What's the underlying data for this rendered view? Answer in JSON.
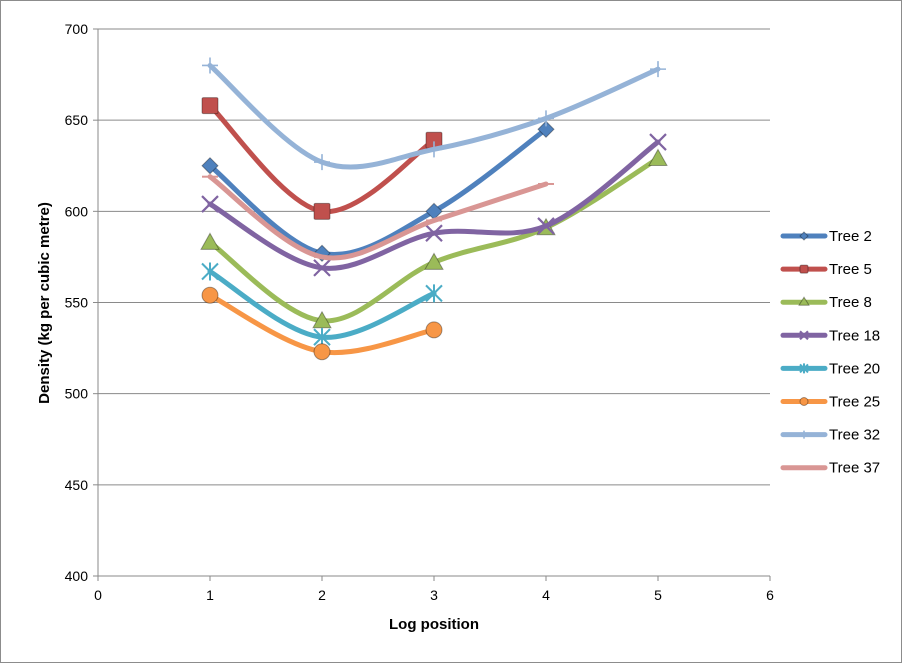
{
  "chart_data": {
    "type": "line",
    "smooth": true,
    "title": "",
    "xlabel": "Log position",
    "ylabel": "Density (kg per cubic metre)",
    "xlim": [
      0,
      6
    ],
    "ylim": [
      400,
      700
    ],
    "x_ticks": [
      0,
      1,
      2,
      3,
      4,
      5,
      6
    ],
    "y_ticks": [
      400,
      450,
      500,
      550,
      600,
      650,
      700
    ],
    "grid": "horizontal",
    "legend": "right",
    "series": [
      {
        "name": "Tree 2",
        "color": "#4f81bd",
        "marker": "diamond",
        "x": [
          1,
          2,
          3,
          4
        ],
        "y": [
          625,
          577,
          600,
          645
        ]
      },
      {
        "name": "Tree 5",
        "color": "#c0504d",
        "marker": "square",
        "x": [
          1,
          2,
          3
        ],
        "y": [
          658,
          600,
          639
        ]
      },
      {
        "name": "Tree 8",
        "color": "#9bbb59",
        "marker": "triangle",
        "x": [
          1,
          2,
          3,
          4,
          5
        ],
        "y": [
          583,
          540,
          572,
          591,
          629
        ]
      },
      {
        "name": "Tree 18",
        "color": "#8064a2",
        "marker": "x",
        "x": [
          1,
          2,
          3,
          4,
          5
        ],
        "y": [
          604,
          569,
          588,
          592,
          638
        ]
      },
      {
        "name": "Tree 20",
        "color": "#4bacc6",
        "marker": "star",
        "x": [
          1,
          2,
          3
        ],
        "y": [
          567,
          531,
          555
        ]
      },
      {
        "name": "Tree 25",
        "color": "#f79646",
        "marker": "circle",
        "x": [
          1,
          2,
          3
        ],
        "y": [
          554,
          523,
          535
        ]
      },
      {
        "name": "Tree 32",
        "color": "#95b3d7",
        "marker": "plus",
        "x": [
          1,
          2,
          3,
          4,
          5
        ],
        "y": [
          680,
          627,
          634,
          651,
          678
        ]
      },
      {
        "name": "Tree 37",
        "color": "#d99694",
        "marker": "dash",
        "x": [
          1,
          2,
          3,
          4
        ],
        "y": [
          619,
          575,
          595,
          615
        ]
      }
    ]
  }
}
